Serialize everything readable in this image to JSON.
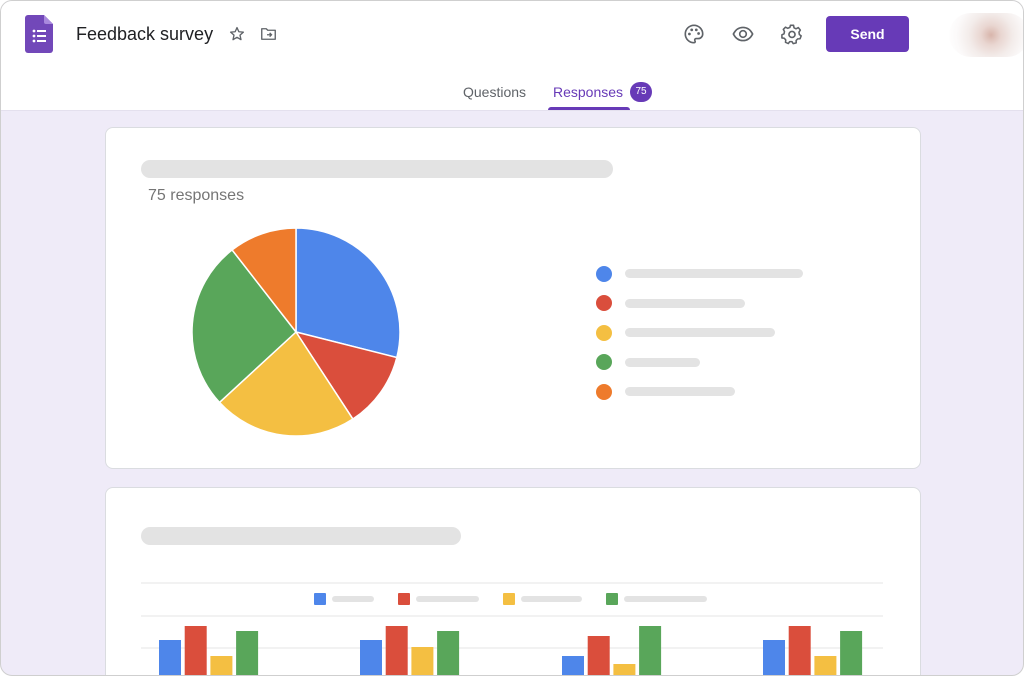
{
  "header": {
    "title": "Feedback survey",
    "send_label": "Send",
    "icons": {
      "app": "google-forms-icon",
      "star": "star-icon",
      "folder": "move-to-folder-icon",
      "palette": "palette-icon",
      "preview": "eye-icon",
      "settings": "gear-icon"
    }
  },
  "tabs": [
    {
      "label": "Questions",
      "active": false
    },
    {
      "label": "Responses",
      "active": true,
      "badge": "75"
    }
  ],
  "colors": {
    "accent": "#673ab7",
    "blue": "#4e86ea",
    "red": "#da4e3c",
    "yellow": "#f4bf42",
    "green": "#59a65a",
    "orange": "#ee7b2c",
    "background": "#efebf8"
  },
  "summary_card": {
    "response_count": "75 responses"
  },
  "chart_data": [
    {
      "type": "pie",
      "values": [
        22,
        9,
        17,
        20,
        8
      ],
      "colors": [
        "#4e86ea",
        "#da4e3c",
        "#f4bf42",
        "#59a65a",
        "#ee7b2c"
      ],
      "legend_position": "right"
    },
    {
      "type": "bar",
      "note_visible": "cropped at bottom",
      "categories": [
        "",
        "",
        "",
        ""
      ],
      "series": [
        {
          "color": "#4e86ea",
          "values": [
            38,
            38,
            22,
            38
          ]
        },
        {
          "color": "#da4e3c",
          "values": [
            52,
            52,
            42,
            52
          ]
        },
        {
          "color": "#f4bf42",
          "values": [
            22,
            31,
            14,
            22
          ]
        },
        {
          "color": "#59a65a",
          "values": [
            47,
            47,
            52,
            47
          ]
        }
      ],
      "legend_position": "top"
    }
  ]
}
